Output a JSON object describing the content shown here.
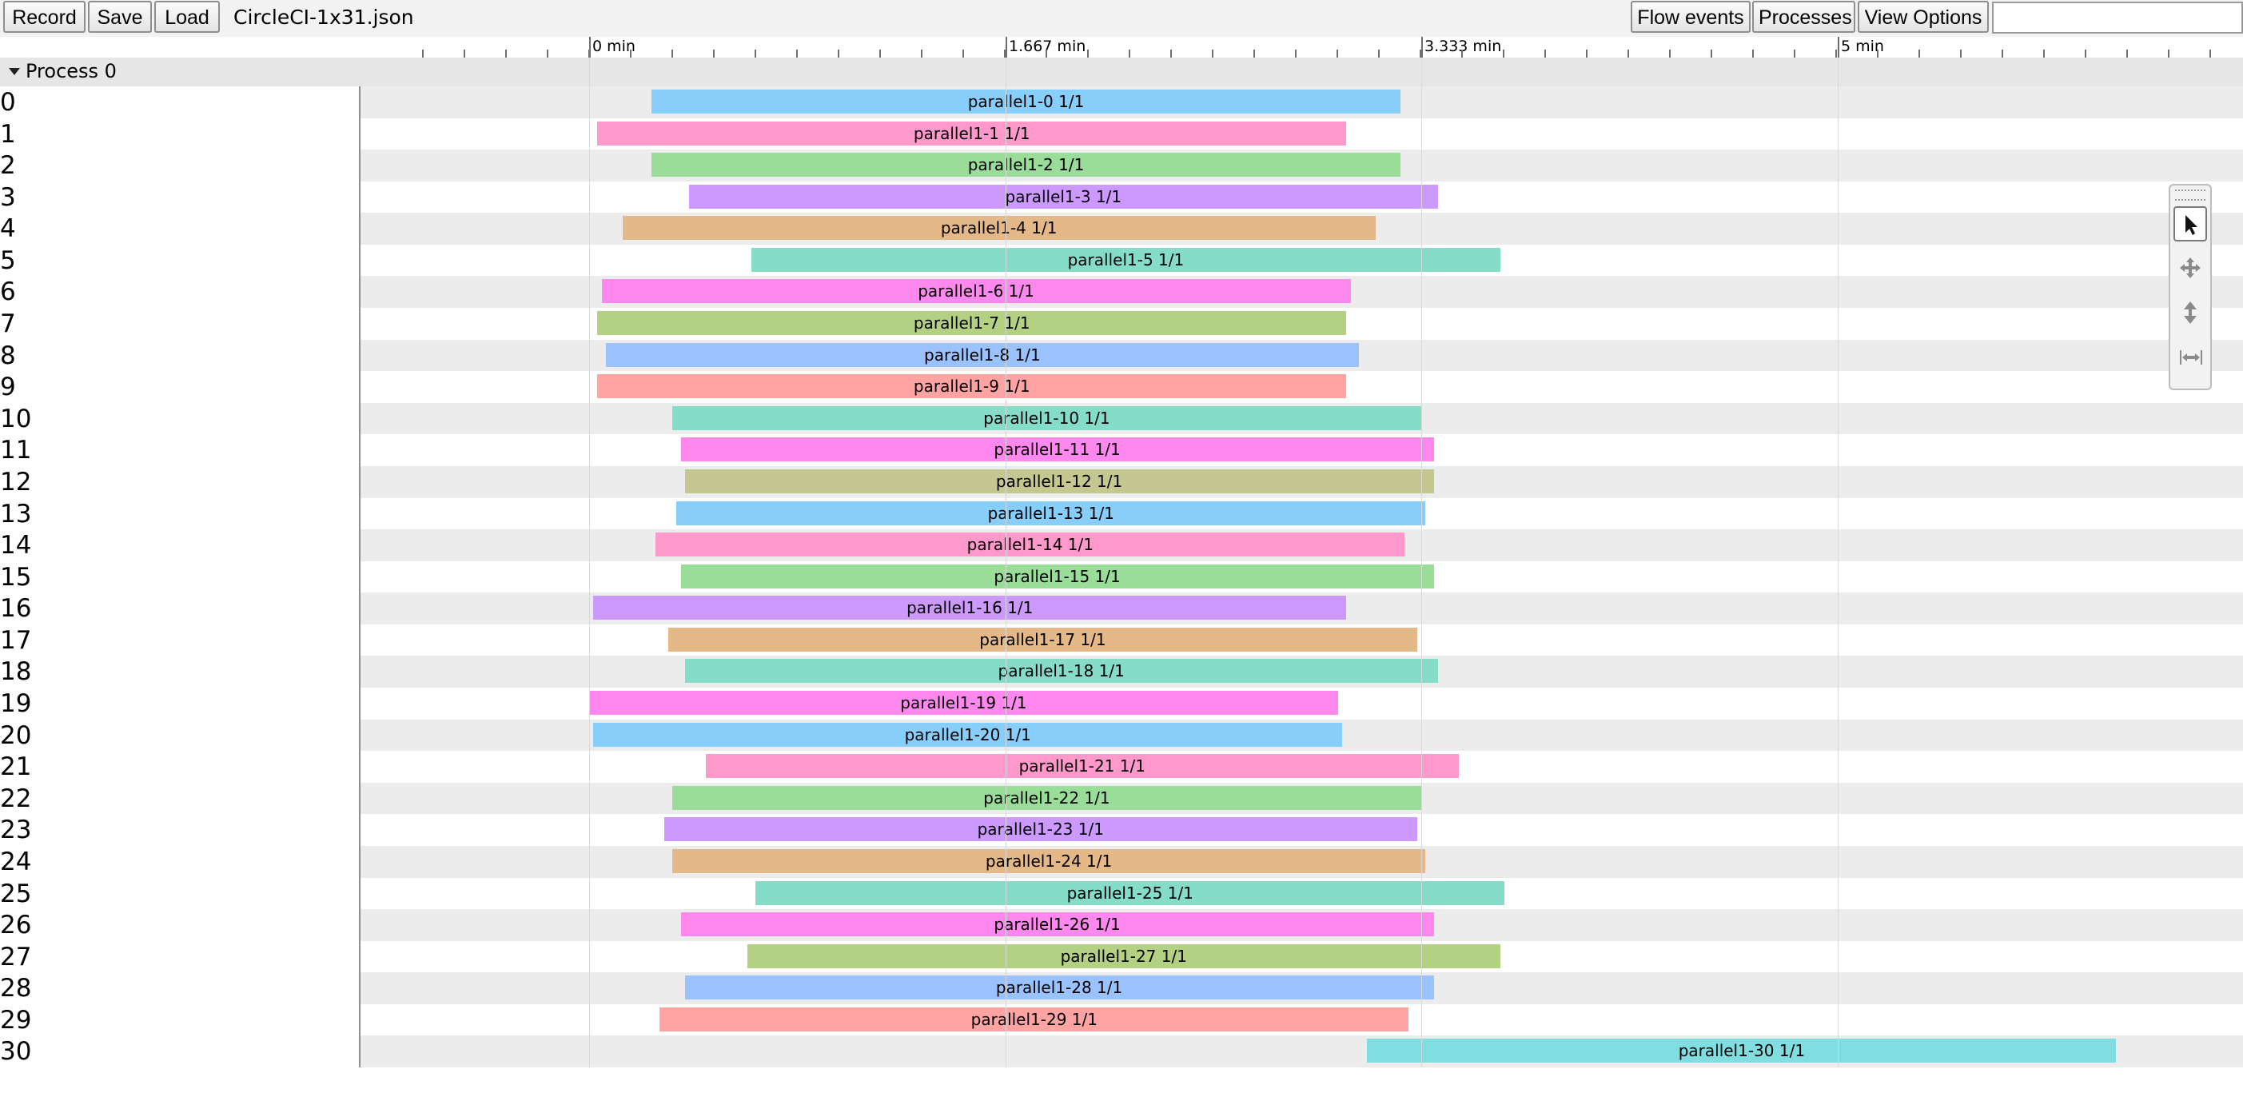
{
  "toolbar": {
    "record_label": "Record",
    "save_label": "Save",
    "load_label": "Load",
    "filename": "CircleCI-1x31.json",
    "flow_events_label": "Flow events",
    "processes_label": "Processes",
    "view_options_label": "View Options",
    "search_value": ""
  },
  "ruler": {
    "labels": [
      "0 min",
      "1.667 min",
      "3.333 min",
      "5 min"
    ]
  },
  "process": {
    "title": "Process 0"
  },
  "colors": [
    "#87cefa",
    "#ff99cc",
    "#99dd99",
    "#cc99ff",
    "#e5b887",
    "#85ddc9",
    "#ff88ee",
    "#b3d083",
    "#99c2ff",
    "#ffa3a3",
    "#85ddc9",
    "#ff88ee",
    "#c4c890",
    "#87cefa",
    "#ff99cc",
    "#99dd99",
    "#cc99ff",
    "#e5b887",
    "#85ddc9",
    "#ff88ee",
    "#87cefa",
    "#ff99cc",
    "#99dd99",
    "#cc99ff",
    "#e5b887",
    "#85ddc9",
    "#ff88ee",
    "#b3d083",
    "#99c2ff",
    "#ffa3a3",
    "#80dde0"
  ],
  "tracks": [
    {
      "label": "0",
      "slice": "parallel1-0 1/1",
      "start_min": 0.25,
      "end_min": 3.25
    },
    {
      "label": "1",
      "slice": "parallel1-1 1/1",
      "start_min": 0.033,
      "end_min": 3.033
    },
    {
      "label": "2",
      "slice": "parallel1-2 1/1",
      "start_min": 0.25,
      "end_min": 3.25
    },
    {
      "label": "3",
      "slice": "parallel1-3 1/1",
      "start_min": 0.4,
      "end_min": 3.4
    },
    {
      "label": "4",
      "slice": "parallel1-4 1/1",
      "start_min": 0.133,
      "end_min": 3.15
    },
    {
      "label": "5",
      "slice": "parallel1-5 1/1",
      "start_min": 0.65,
      "end_min": 3.65
    },
    {
      "label": "6",
      "slice": "parallel1-6 1/1",
      "start_min": 0.05,
      "end_min": 3.05
    },
    {
      "label": "7",
      "slice": "parallel1-7 1/1",
      "start_min": 0.033,
      "end_min": 3.033
    },
    {
      "label": "8",
      "slice": "parallel1-8 1/1",
      "start_min": 0.067,
      "end_min": 3.083
    },
    {
      "label": "9",
      "slice": "parallel1-9 1/1",
      "start_min": 0.033,
      "end_min": 3.033
    },
    {
      "label": "10",
      "slice": "parallel1-10 1/1",
      "start_min": 0.333,
      "end_min": 3.333
    },
    {
      "label": "11",
      "slice": "parallel1-11 1/1",
      "start_min": 0.367,
      "end_min": 3.383
    },
    {
      "label": "12",
      "slice": "parallel1-12 1/1",
      "start_min": 0.383,
      "end_min": 3.383
    },
    {
      "label": "13",
      "slice": "parallel1-13 1/1",
      "start_min": 0.35,
      "end_min": 3.35
    },
    {
      "label": "14",
      "slice": "parallel1-14 1/1",
      "start_min": 0.267,
      "end_min": 3.267
    },
    {
      "label": "15",
      "slice": "parallel1-15 1/1",
      "start_min": 0.367,
      "end_min": 3.383
    },
    {
      "label": "16",
      "slice": "parallel1-16 1/1",
      "start_min": 0.017,
      "end_min": 3.033
    },
    {
      "label": "17",
      "slice": "parallel1-17 1/1",
      "start_min": 0.317,
      "end_min": 3.317
    },
    {
      "label": "18",
      "slice": "parallel1-18 1/1",
      "start_min": 0.383,
      "end_min": 3.4
    },
    {
      "label": "19",
      "slice": "parallel1-19 1/1",
      "start_min": 0.0,
      "end_min": 3.0
    },
    {
      "label": "20",
      "slice": "parallel1-20 1/1",
      "start_min": 0.017,
      "end_min": 3.017
    },
    {
      "label": "21",
      "slice": "parallel1-21 1/1",
      "start_min": 0.467,
      "end_min": 3.483
    },
    {
      "label": "22",
      "slice": "parallel1-22 1/1",
      "start_min": 0.333,
      "end_min": 3.333
    },
    {
      "label": "23",
      "slice": "parallel1-23 1/1",
      "start_min": 0.3,
      "end_min": 3.317
    },
    {
      "label": "24",
      "slice": "parallel1-24 1/1",
      "start_min": 0.333,
      "end_min": 3.35
    },
    {
      "label": "25",
      "slice": "parallel1-25 1/1",
      "start_min": 0.667,
      "end_min": 3.667
    },
    {
      "label": "26",
      "slice": "parallel1-26 1/1",
      "start_min": 0.367,
      "end_min": 3.383
    },
    {
      "label": "27",
      "slice": "parallel1-27 1/1",
      "start_min": 0.633,
      "end_min": 3.65
    },
    {
      "label": "28",
      "slice": "parallel1-28 1/1",
      "start_min": 0.383,
      "end_min": 3.383
    },
    {
      "label": "29",
      "slice": "parallel1-29 1/1",
      "start_min": 0.283,
      "end_min": 3.283
    },
    {
      "label": "30",
      "slice": "parallel1-30 1/1",
      "start_min": 3.117,
      "end_min": 6.117
    }
  ]
}
